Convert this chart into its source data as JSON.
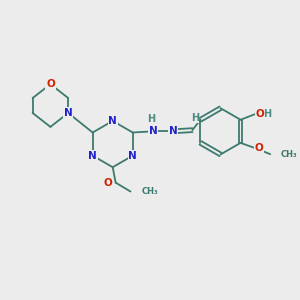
{
  "bg_color": "#ececec",
  "bond_color": "#3d7a6e",
  "N_color": "#2020cc",
  "O_color": "#cc2200",
  "H_color": "#4a8a7e",
  "font_size": 7.5,
  "line_width": 1.3,
  "fig_size": [
    3.0,
    3.0
  ],
  "dpi": 100,
  "xlim": [
    0,
    10
  ],
  "ylim": [
    0,
    10
  ]
}
